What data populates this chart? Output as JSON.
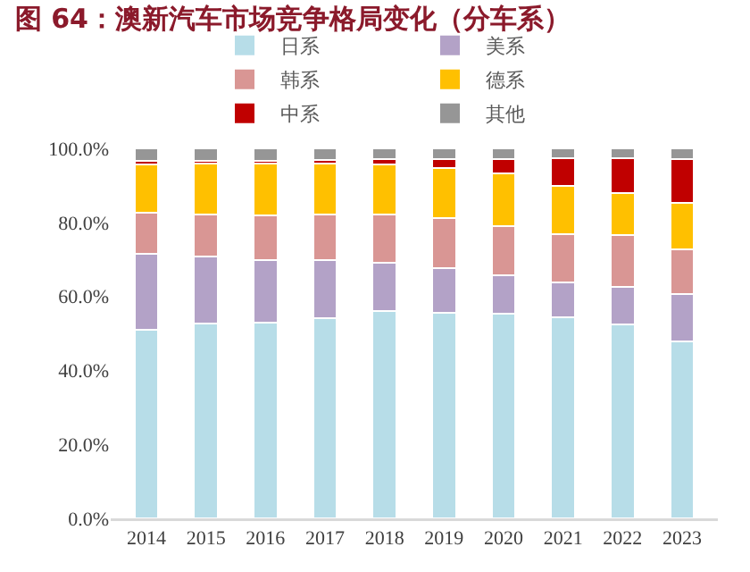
{
  "chart_data": {
    "type": "bar",
    "title": "图 64：澳新汽车市场竞争格局变化（分车系）",
    "stacked": true,
    "categories": [
      "2014",
      "2015",
      "2016",
      "2017",
      "2018",
      "2019",
      "2020",
      "2021",
      "2022",
      "2023"
    ],
    "series": [
      {
        "name": "日系",
        "color": "#b7dde8",
        "values": [
          51.0,
          52.6,
          52.9,
          54.0,
          56.1,
          55.5,
          55.2,
          54.3,
          52.4,
          47.9
        ]
      },
      {
        "name": "美系",
        "color": "#b3a2c7",
        "values": [
          20.5,
          18.2,
          17.0,
          15.9,
          13.1,
          12.1,
          10.5,
          9.4,
          10.2,
          12.7
        ]
      },
      {
        "name": "韩系",
        "color": "#d99694",
        "values": [
          11.2,
          11.4,
          12.1,
          12.3,
          13.0,
          13.5,
          13.4,
          13.1,
          13.9,
          12.2
        ]
      },
      {
        "name": "德系",
        "color": "#ffc000",
        "values": [
          13.0,
          13.8,
          14.0,
          13.8,
          13.5,
          13.7,
          14.2,
          13.0,
          11.4,
          12.5
        ]
      },
      {
        "name": "中系",
        "color": "#c00000",
        "values": [
          0.8,
          0.7,
          0.5,
          0.9,
          1.4,
          2.4,
          3.9,
          7.6,
          9.5,
          11.9
        ]
      },
      {
        "name": "其他",
        "color": "#969696",
        "values": [
          3.5,
          3.3,
          3.5,
          3.1,
          2.9,
          2.8,
          2.8,
          2.6,
          2.6,
          2.8
        ]
      }
    ],
    "ylim": [
      0,
      100
    ],
    "yticks": [
      {
        "value": 0,
        "label": "0.0%"
      },
      {
        "value": 20,
        "label": "20.0%"
      },
      {
        "value": 40,
        "label": "40.0%"
      },
      {
        "value": 60,
        "label": "60.0%"
      },
      {
        "value": 80,
        "label": "80.0%"
      },
      {
        "value": 100,
        "label": "100.0%"
      }
    ],
    "grid": false,
    "legend": "top"
  }
}
